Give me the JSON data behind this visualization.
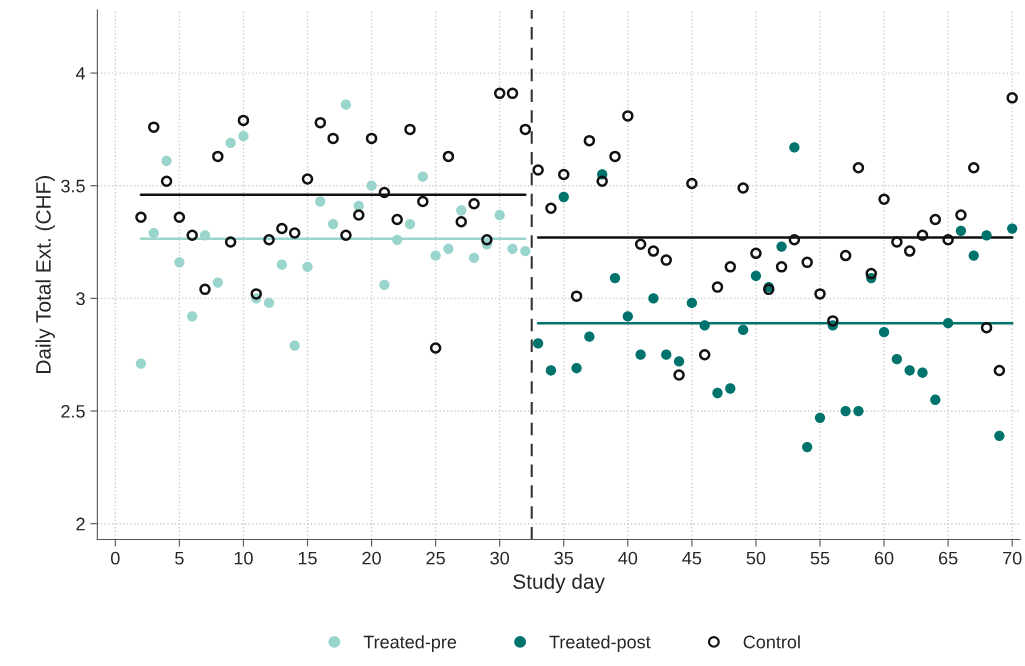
{
  "chart_data": {
    "type": "scatter",
    "xlabel": "Study day",
    "ylabel": "Daily Total Ext. (CHF)",
    "xlim": [
      -1.4,
      70.6
    ],
    "ylim": [
      1.93,
      4.28
    ],
    "xticks": [
      0,
      5,
      10,
      15,
      20,
      25,
      30,
      35,
      40,
      45,
      50,
      55,
      60,
      65,
      70
    ],
    "yticks": [
      2,
      2.5,
      3,
      3.5,
      4
    ],
    "grid": true,
    "legend": "bottom",
    "ref_lines": [
      {
        "axis": "x",
        "value": 32.5,
        "color": "#333333",
        "line_style": "dashed"
      }
    ],
    "series": [
      {
        "name": "Treated-pre",
        "color": "#99d5cc",
        "marker": "circle",
        "x": [
          2,
          3,
          4,
          5,
          6,
          7,
          8,
          9,
          10,
          11,
          12,
          13,
          14,
          15,
          16,
          17,
          18,
          19,
          20,
          21,
          22,
          23,
          24,
          25,
          26,
          27,
          28,
          29,
          30,
          31,
          32
        ],
        "values": [
          2.71,
          3.29,
          3.61,
          3.16,
          2.92,
          3.28,
          3.07,
          3.69,
          3.72,
          3.0,
          2.98,
          3.15,
          2.79,
          3.14,
          3.43,
          3.33,
          3.86,
          3.41,
          3.5,
          3.06,
          3.26,
          3.33,
          3.54,
          3.19,
          3.22,
          3.39,
          3.18,
          3.24,
          3.37,
          3.22,
          3.21
        ]
      },
      {
        "name": "Treated-post",
        "color": "#00736d",
        "marker": "circle",
        "x": [
          33,
          34,
          35,
          36,
          37,
          38,
          39,
          40,
          41,
          42,
          43,
          44,
          45,
          46,
          47,
          48,
          49,
          50,
          51,
          52,
          53,
          54,
          55,
          56,
          57,
          58,
          59,
          60,
          61,
          62,
          63,
          64,
          65,
          66,
          67,
          68,
          69,
          70
        ],
        "values": [
          2.8,
          2.68,
          3.45,
          2.69,
          2.83,
          3.55,
          3.09,
          2.92,
          2.75,
          3.0,
          2.75,
          2.72,
          2.98,
          2.88,
          2.58,
          2.6,
          2.86,
          3.1,
          3.05,
          3.23,
          3.67,
          2.34,
          2.47,
          2.88,
          2.5,
          2.5,
          3.09,
          2.85,
          2.73,
          2.68,
          2.67,
          2.55,
          2.89,
          3.3,
          3.19,
          3.28,
          2.39,
          3.31
        ]
      },
      {
        "name": "Control",
        "color": "#111111",
        "marker": "circle",
        "x": [
          2,
          3,
          4,
          5,
          6,
          7,
          8,
          9,
          10,
          11,
          12,
          13,
          14,
          15,
          16,
          17,
          18,
          19,
          20,
          21,
          22,
          23,
          24,
          25,
          26,
          27,
          28,
          29,
          30,
          31,
          32,
          33,
          34,
          35,
          36,
          37,
          38,
          39,
          40,
          41,
          42,
          43,
          44,
          45,
          46,
          47,
          48,
          49,
          50,
          51,
          52,
          53,
          54,
          55,
          56,
          57,
          58,
          59,
          60,
          61,
          62,
          63,
          64,
          65,
          66,
          67,
          68,
          69,
          70
        ],
        "values": [
          3.36,
          3.76,
          3.52,
          3.36,
          3.28,
          3.04,
          3.63,
          3.25,
          3.79,
          3.02,
          3.26,
          3.31,
          3.29,
          3.53,
          3.78,
          3.71,
          3.28,
          3.37,
          3.71,
          3.47,
          3.35,
          3.75,
          3.43,
          2.78,
          3.63,
          3.34,
          3.42,
          3.26,
          3.91,
          3.91,
          3.75,
          3.57,
          3.4,
          3.55,
          3.01,
          3.7,
          3.52,
          3.63,
          3.81,
          3.24,
          3.21,
          3.17,
          2.66,
          3.51,
          2.75,
          3.05,
          3.14,
          3.49,
          3.2,
          3.04,
          3.14,
          3.26,
          3.16,
          3.02,
          2.9,
          3.19,
          3.58,
          3.11,
          3.44,
          3.25,
          3.21,
          3.28,
          3.35,
          3.26,
          3.37,
          3.58,
          2.87,
          2.68,
          3.89
        ]
      },
      {
        "type": "line",
        "color": "#99d5cc",
        "x": [
          2,
          32
        ],
        "values": [
          3.265,
          3.265
        ]
      },
      {
        "type": "line",
        "color": "#00736d",
        "x": [
          33,
          70
        ],
        "values": [
          2.89,
          2.89
        ]
      },
      {
        "type": "line",
        "color": "#111111",
        "x": [
          2,
          32
        ],
        "values": [
          3.46,
          3.46
        ]
      },
      {
        "type": "line",
        "color": "#111111",
        "x": [
          33,
          70
        ],
        "values": [
          3.27,
          3.27
        ]
      }
    ]
  }
}
